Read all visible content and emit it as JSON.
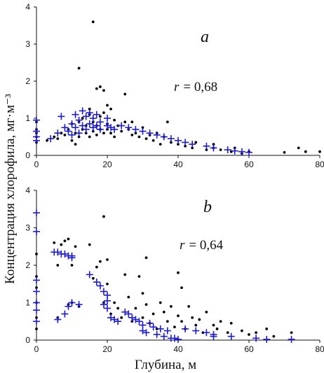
{
  "chart_data": [
    {
      "type": "scatter",
      "panel": "a",
      "annotation": "r = 0,68",
      "annotation_r": "r",
      "annotation_value": "= 0,68",
      "xlim": [
        0,
        80
      ],
      "ylim": [
        0,
        4
      ],
      "xticks": [
        "0",
        "20",
        "40",
        "60",
        "80"
      ],
      "yticks": [
        "0",
        "1",
        "2",
        "3",
        "4"
      ],
      "series": [
        {
          "marker": "dot",
          "color": "#000000",
          "points": [
            [
              0,
              0.35
            ],
            [
              0,
              0.5
            ],
            [
              0,
              0.6
            ],
            [
              0,
              0.7
            ],
            [
              0,
              0.9
            ],
            [
              3,
              0.4
            ],
            [
              5,
              0.5
            ],
            [
              6,
              0.45
            ],
            [
              7,
              0.6
            ],
            [
              8,
              0.55
            ],
            [
              9,
              0.7
            ],
            [
              10,
              0.4
            ],
            [
              10,
              0.85
            ],
            [
              11,
              0.3
            ],
            [
              11,
              0.6
            ],
            [
              12,
              2.35
            ],
            [
              12,
              0.9
            ],
            [
              12,
              0.5
            ],
            [
              13,
              0.7
            ],
            [
              13,
              1.0
            ],
            [
              14,
              0.6
            ],
            [
              14,
              0.8
            ],
            [
              15,
              0.5
            ],
            [
              15,
              1.1
            ],
            [
              15,
              1.25
            ],
            [
              16,
              0.65
            ],
            [
              16,
              0.9
            ],
            [
              16,
              3.6
            ],
            [
              17,
              0.8
            ],
            [
              17,
              1.8
            ],
            [
              17,
              0.55
            ],
            [
              18,
              1.85
            ],
            [
              18,
              0.7
            ],
            [
              18,
              1.05
            ],
            [
              19,
              0.6
            ],
            [
              19,
              1.15
            ],
            [
              19,
              1.75
            ],
            [
              20,
              0.85
            ],
            [
              20,
              1.35
            ],
            [
              20,
              0.7
            ],
            [
              21,
              0.6
            ],
            [
              21,
              1.25
            ],
            [
              22,
              0.95
            ],
            [
              22,
              0.5
            ],
            [
              23,
              0.8
            ],
            [
              24,
              0.65
            ],
            [
              25,
              0.9
            ],
            [
              25,
              1.65
            ],
            [
              26,
              0.7
            ],
            [
              27,
              0.55
            ],
            [
              27,
              0.9
            ],
            [
              28,
              0.6
            ],
            [
              29,
              0.5
            ],
            [
              30,
              0.75
            ],
            [
              31,
              0.45
            ],
            [
              32,
              0.55
            ],
            [
              33,
              0.4
            ],
            [
              34,
              0.6
            ],
            [
              35,
              0.3
            ],
            [
              36,
              0.5
            ],
            [
              37,
              0.9
            ],
            [
              38,
              0.35
            ],
            [
              40,
              0.3
            ],
            [
              42,
              0.25
            ],
            [
              44,
              0.2
            ],
            [
              45,
              0.35
            ],
            [
              48,
              0.15
            ],
            [
              50,
              0.3
            ],
            [
              50,
              0.2
            ],
            [
              52,
              0.15
            ],
            [
              55,
              0.1
            ],
            [
              56,
              0.2
            ],
            [
              58,
              0.05
            ],
            [
              60,
              0.1
            ],
            [
              70,
              0.08
            ],
            [
              74,
              0.2
            ],
            [
              76,
              0.1
            ],
            [
              80,
              0.1
            ]
          ]
        },
        {
          "marker": "cross",
          "color": "#1a1ad8",
          "points": [
            [
              0,
              0.95
            ],
            [
              0,
              0.65
            ],
            [
              0,
              0.5
            ],
            [
              0,
              0.4
            ],
            [
              4,
              0.45
            ],
            [
              6,
              0.6
            ],
            [
              7,
              1.05
            ],
            [
              8,
              0.75
            ],
            [
              9,
              0.65
            ],
            [
              10,
              0.55
            ],
            [
              10,
              0.85
            ],
            [
              11,
              1.1
            ],
            [
              11,
              0.75
            ],
            [
              12,
              0.6
            ],
            [
              12,
              0.95
            ],
            [
              13,
              1.2
            ],
            [
              13,
              0.8
            ],
            [
              14,
              0.7
            ],
            [
              14,
              1.05
            ],
            [
              15,
              1.15
            ],
            [
              15,
              0.85
            ],
            [
              16,
              0.75
            ],
            [
              16,
              1.0
            ],
            [
              17,
              1.1
            ],
            [
              17,
              0.8
            ],
            [
              18,
              0.9
            ],
            [
              18,
              0.7
            ],
            [
              20,
              1.0
            ],
            [
              20,
              0.8
            ],
            [
              21,
              0.75
            ],
            [
              22,
              0.7
            ],
            [
              24,
              0.8
            ],
            [
              26,
              0.75
            ],
            [
              28,
              0.7
            ],
            [
              30,
              0.65
            ],
            [
              32,
              0.6
            ],
            [
              34,
              0.55
            ],
            [
              36,
              0.5
            ],
            [
              38,
              0.45
            ],
            [
              40,
              0.4
            ],
            [
              42,
              0.35
            ],
            [
              44,
              0.3
            ],
            [
              48,
              0.25
            ],
            [
              50,
              0.2
            ],
            [
              54,
              0.15
            ],
            [
              56,
              0.12
            ],
            [
              58,
              0.1
            ],
            [
              60,
              0.08
            ]
          ]
        }
      ]
    },
    {
      "type": "scatter",
      "panel": "b",
      "annotation": "r = 0,64",
      "annotation_r": "r",
      "annotation_value": "= 0,64",
      "xlim": [
        0,
        80
      ],
      "ylim": [
        0,
        4
      ],
      "xticks": [
        "0",
        "20",
        "40",
        "60",
        "80"
      ],
      "yticks": [
        "0",
        "1",
        "2",
        "3",
        "4"
      ],
      "xlabel": "Глубина, м",
      "ylabel": "Концентрация хлорофила, мг·м⁻³",
      "series": [
        {
          "marker": "dot",
          "color": "#000000",
          "points": [
            [
              0,
              0.3
            ],
            [
              0,
              0.6
            ],
            [
              0,
              1.0
            ],
            [
              0,
              1.4
            ],
            [
              0,
              1.7
            ],
            [
              0,
              2.3
            ],
            [
              5,
              2.6
            ],
            [
              6,
              2.0
            ],
            [
              6,
              0.6
            ],
            [
              7,
              2.55
            ],
            [
              8,
              2.65
            ],
            [
              9,
              2.7
            ],
            [
              9,
              0.95
            ],
            [
              10,
              1.0
            ],
            [
              10,
              2.0
            ],
            [
              11,
              2.5
            ],
            [
              12,
              0.9
            ],
            [
              15,
              2.55
            ],
            [
              16,
              1.65
            ],
            [
              17,
              1.95
            ],
            [
              18,
              2.1
            ],
            [
              19,
              3.3
            ],
            [
              19,
              1.0
            ],
            [
              20,
              2.15
            ],
            [
              20,
              1.5
            ],
            [
              21,
              0.7
            ],
            [
              22,
              1.0
            ],
            [
              23,
              0.85
            ],
            [
              24,
              0.6
            ],
            [
              25,
              1.75
            ],
            [
              26,
              1.15
            ],
            [
              27,
              0.5
            ],
            [
              28,
              0.85
            ],
            [
              29,
              1.7
            ],
            [
              30,
              0.6
            ],
            [
              30,
              1.25
            ],
            [
              31,
              2.2
            ],
            [
              31,
              0.95
            ],
            [
              32,
              0.45
            ],
            [
              33,
              0.7
            ],
            [
              34,
              0.3
            ],
            [
              35,
              1.0
            ],
            [
              36,
              0.75
            ],
            [
              37,
              0.5
            ],
            [
              38,
              0.9
            ],
            [
              39,
              0.35
            ],
            [
              40,
              1.8
            ],
            [
              40,
              0.65
            ],
            [
              41,
              1.4
            ],
            [
              41,
              0.5
            ],
            [
              42,
              0.3
            ],
            [
              43,
              0.9
            ],
            [
              44,
              0.6
            ],
            [
              45,
              0.4
            ],
            [
              46,
              0.55
            ],
            [
              47,
              0.2
            ],
            [
              48,
              0.75
            ],
            [
              50,
              0.4
            ],
            [
              51,
              0.3
            ],
            [
              52,
              0.5
            ],
            [
              54,
              0.2
            ],
            [
              55,
              0.45
            ],
            [
              58,
              0.25
            ],
            [
              60,
              0.15
            ],
            [
              62,
              0.2
            ],
            [
              65,
              0.3
            ],
            [
              67,
              0.1
            ],
            [
              72,
              0.2
            ]
          ]
        },
        {
          "marker": "cross",
          "color": "#1a1ad8",
          "points": [
            [
              0,
              3.4
            ],
            [
              0,
              2.9
            ],
            [
              0,
              1.6
            ],
            [
              0,
              1.3
            ],
            [
              0,
              1.0
            ],
            [
              0,
              0.8
            ],
            [
              0,
              0.5
            ],
            [
              5,
              2.35
            ],
            [
              6,
              2.35
            ],
            [
              7,
              2.3
            ],
            [
              8,
              2.3
            ],
            [
              9,
              2.25
            ],
            [
              10,
              2.25
            ],
            [
              10,
              2.2
            ],
            [
              6,
              0.55
            ],
            [
              8,
              0.7
            ],
            [
              9,
              0.9
            ],
            [
              10,
              1.0
            ],
            [
              12,
              0.95
            ],
            [
              15,
              1.75
            ],
            [
              17,
              1.55
            ],
            [
              18,
              1.45
            ],
            [
              19,
              1.3
            ],
            [
              19,
              0.95
            ],
            [
              20,
              1.2
            ],
            [
              20,
              0.85
            ],
            [
              20,
              1.05
            ],
            [
              21,
              0.6
            ],
            [
              22,
              0.55
            ],
            [
              23,
              0.5
            ],
            [
              25,
              0.75
            ],
            [
              26,
              0.7
            ],
            [
              27,
              0.6
            ],
            [
              28,
              0.55
            ],
            [
              29,
              0.5
            ],
            [
              30,
              0.4
            ],
            [
              30,
              0.25
            ],
            [
              31,
              0.2
            ],
            [
              32,
              0.45
            ],
            [
              33,
              0.35
            ],
            [
              34,
              0.15
            ],
            [
              35,
              0.3
            ],
            [
              36,
              0.1
            ],
            [
              37,
              0.25
            ],
            [
              38,
              0.05
            ],
            [
              39,
              0.05
            ],
            [
              40,
              0.02
            ],
            [
              42,
              0.3
            ],
            [
              45,
              0.25
            ],
            [
              48,
              0.2
            ],
            [
              50,
              0.15
            ],
            [
              50,
              0.1
            ],
            [
              55,
              0.1
            ],
            [
              62,
              0.05
            ],
            [
              65,
              0.02
            ],
            [
              72,
              0.02
            ]
          ]
        }
      ]
    }
  ]
}
